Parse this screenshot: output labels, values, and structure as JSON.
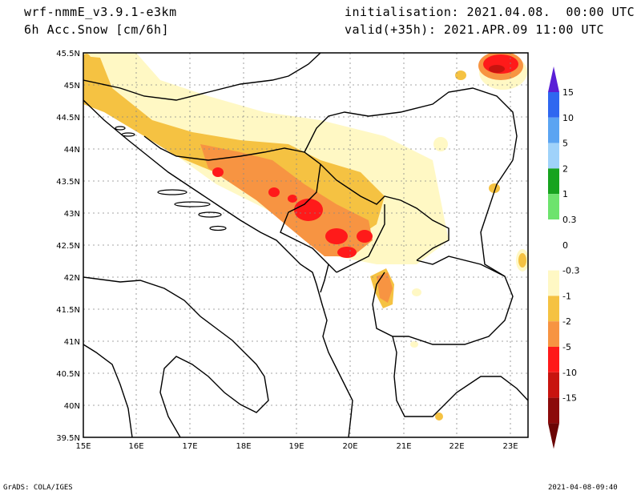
{
  "header": {
    "model": "wrf-nmmE_v3.9.1-e3km",
    "variable": "6h Acc.Snow [cm/6h]",
    "init": "initialisation: 2021.04.08.  00:00 UTC",
    "valid": "valid(+35h): 2021.APR.09 11:00 UTC"
  },
  "footer": {
    "left": "GrADS: COLA/IGES",
    "right": "2021-04-08-09:40"
  },
  "map": {
    "lat_ticks": [
      "45.5N",
      "45N",
      "44.5N",
      "44N",
      "43.5N",
      "43N",
      "42.5N",
      "42N",
      "41.5N",
      "41N",
      "40.5N",
      "40N",
      "39.5N"
    ],
    "lon_ticks": [
      "15E",
      "16E",
      "17E",
      "18E",
      "19E",
      "20E",
      "21E",
      "22E",
      "23E"
    ]
  },
  "legend": {
    "labels": [
      "15",
      "10",
      "5",
      "2",
      "1",
      "0.3",
      "0",
      "-0.3",
      "-1",
      "-2",
      "-5",
      "-10",
      "-15"
    ],
    "colors": [
      "#5a1fd6",
      "#2f67f0",
      "#5ba4f2",
      "#9fd2fa",
      "#17a31f",
      "#6de36d",
      "#ffffff",
      "#ffffff",
      "#fff8c4",
      "#f5c242",
      "#f79442",
      "#ff1a1a",
      "#c8140f",
      "#8c0a0a",
      "#6b0505"
    ]
  }
}
